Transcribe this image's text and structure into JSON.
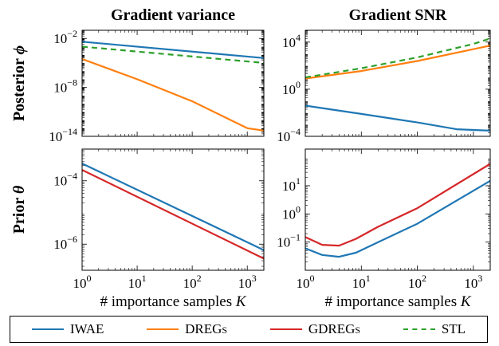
{
  "figure": {
    "column_titles": [
      "Gradient variance",
      "Gradient SNR"
    ],
    "row_labels": [
      "Posterior",
      "Prior"
    ],
    "row_symbols": [
      "ϕ",
      "θ"
    ],
    "xlabel_text": "# importance samples",
    "xlabel_symbol": "K"
  },
  "legend": [
    {
      "name": "IWAE",
      "color": "#1f77b4",
      "dash": "solid"
    },
    {
      "name": "DREGs",
      "color": "#ff7f0e",
      "dash": "solid"
    },
    {
      "name": "GDREGs",
      "color": "#d62728",
      "dash": "solid"
    },
    {
      "name": "STL",
      "color": "#2ca02c",
      "dash": "dashed"
    }
  ],
  "chart_data": [
    {
      "type": "line",
      "title": "Gradient variance",
      "ylabel": "Posterior ϕ",
      "xscale": "log",
      "yscale": "log",
      "xlim": [
        1,
        2000
      ],
      "ylim": [
        1e-14,
        0.1
      ],
      "x_ticks": [
        1,
        10,
        100,
        1000
      ],
      "y_ticks": [
        0.01,
        1e-08,
        1e-14
      ],
      "series": [
        {
          "name": "IWAE",
          "x": [
            1,
            2000
          ],
          "y": [
            0.004,
            4e-05
          ]
        },
        {
          "name": "DREGs",
          "x": [
            1,
            10,
            100,
            1000,
            2000
          ],
          "y": [
            3e-05,
            1e-07,
            2e-10,
            1e-13,
            5e-14
          ]
        },
        {
          "name": "STL",
          "x": [
            1,
            2000
          ],
          "y": [
            0.001,
            1e-05
          ]
        }
      ]
    },
    {
      "type": "line",
      "title": "Gradient SNR",
      "ylabel": "",
      "xscale": "log",
      "yscale": "log",
      "xlim": [
        1,
        2000
      ],
      "ylim": [
        0.0001,
        100000
      ],
      "x_ticks": [
        1,
        10,
        100,
        1000
      ],
      "y_ticks": [
        10000,
        1,
        0.0001
      ],
      "series": [
        {
          "name": "IWAE",
          "x": [
            1,
            10,
            100,
            500,
            2000
          ],
          "y": [
            0.04,
            0.008,
            0.0015,
            0.0004,
            0.0003
          ]
        },
        {
          "name": "DREGs",
          "x": [
            1,
            10,
            100,
            1000,
            2000
          ],
          "y": [
            8,
            35,
            250,
            2500,
            5000
          ]
        },
        {
          "name": "STL",
          "x": [
            1,
            10,
            100,
            1000,
            2000
          ],
          "y": [
            10,
            60,
            500,
            7000,
            20000
          ]
        }
      ]
    },
    {
      "type": "line",
      "title": "",
      "ylabel": "Prior θ",
      "xscale": "log",
      "yscale": "log",
      "xlim": [
        1,
        2000
      ],
      "ylim": [
        1.5e-07,
        0.001
      ],
      "x_ticks": [
        1,
        10,
        100,
        1000
      ],
      "y_ticks": [
        0.0001,
        1e-06
      ],
      "series": [
        {
          "name": "IWAE",
          "x": [
            1,
            2000
          ],
          "y": [
            0.00035,
            6.5e-07
          ]
        },
        {
          "name": "GDREGs",
          "x": [
            1,
            2000
          ],
          "y": [
            0.00022,
            3.5e-07
          ]
        }
      ]
    },
    {
      "type": "line",
      "title": "",
      "ylabel": "",
      "xscale": "log",
      "yscale": "log",
      "xlim": [
        1,
        2000
      ],
      "ylim": [
        0.01,
        200
      ],
      "x_ticks": [
        1,
        10,
        100,
        1000
      ],
      "y_ticks": [
        10,
        1,
        0.1
      ],
      "series": [
        {
          "name": "IWAE",
          "x": [
            1,
            2,
            4,
            8,
            20,
            100,
            2000
          ],
          "y": [
            0.06,
            0.035,
            0.03,
            0.042,
            0.1,
            0.45,
            15
          ]
        },
        {
          "name": "GDREGs",
          "x": [
            1,
            2,
            4,
            8,
            20,
            100,
            2000
          ],
          "y": [
            0.15,
            0.08,
            0.075,
            0.13,
            0.35,
            1.6,
            60
          ]
        }
      ]
    }
  ]
}
